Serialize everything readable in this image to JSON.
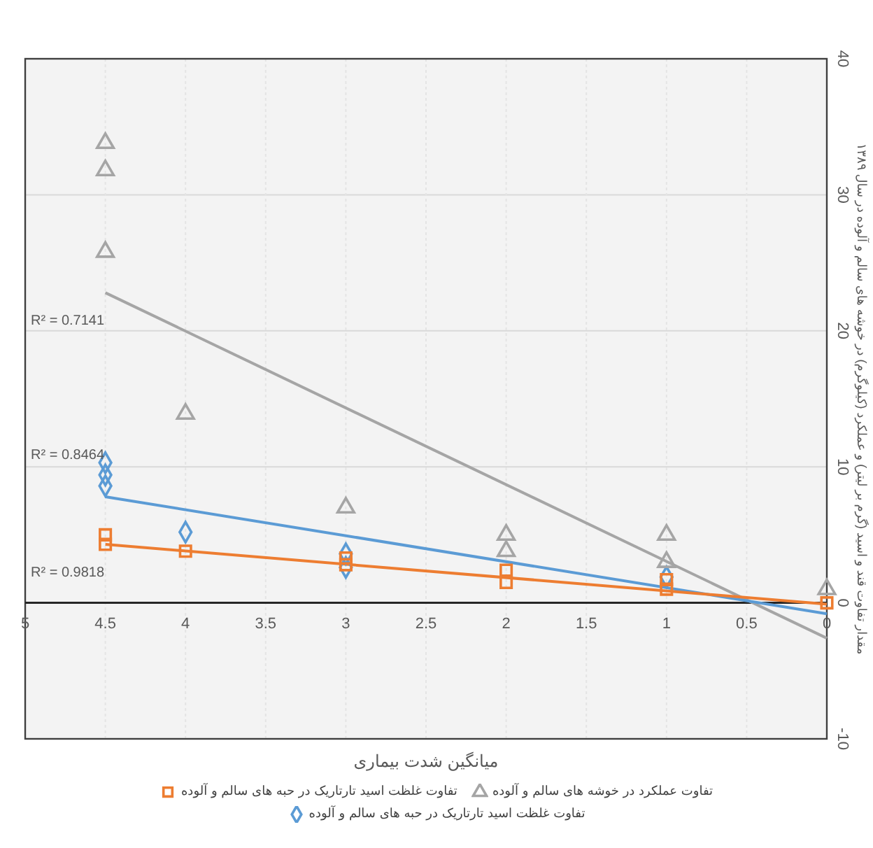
{
  "chart_data": {
    "type": "scatter",
    "xlabel": "میانگین شدت بیماری",
    "ylabel": "مقدار تفاوت قند و اسید (گرم بر لیتر) و عملکرد (کیلوگرم) در خوشه های سالم و آلوده در سال ۱۳۸۹",
    "xlim": [
      5,
      0
    ],
    "xticks": [
      5,
      4.5,
      4,
      3.5,
      3,
      2.5,
      2,
      1.5,
      1,
      0.5,
      0
    ],
    "ylim": [
      -10,
      40
    ],
    "yticks": [
      -10,
      0,
      10,
      20,
      30,
      40
    ],
    "grid": true,
    "legend": "bottom",
    "series": [
      {
        "name": "تفاوت عملکرد در خوشه های سالم و آلوده",
        "marker": "triangle",
        "color": "#a5a5a5",
        "x": [
          4.5,
          4.5,
          4.5,
          4,
          3,
          2,
          2,
          1,
          1,
          0
        ],
        "values": [
          33.8,
          31.8,
          25.8,
          13.9,
          7.0,
          5.0,
          3.8,
          5.0,
          3.0,
          1.0
        ]
      },
      {
        "name": "تفاوت غلظت اسید تارتاریک در حبه های سالم و آلوده",
        "marker": "square",
        "color": "#ed7d31",
        "x": [
          4.5,
          4.5,
          4,
          3,
          3,
          2,
          2,
          1,
          1,
          0
        ],
        "values": [
          5.0,
          4.3,
          3.8,
          3.3,
          2.8,
          2.4,
          1.5,
          1.7,
          1.0,
          0
        ]
      },
      {
        "name": "تفاوت غلظت اسید تارتاریک در حبه های سالم و آلوده",
        "marker": "diamond",
        "color": "#5b9bd5",
        "x": [
          4.5,
          4.5,
          4.5,
          4,
          3,
          3,
          1
        ],
        "values": [
          10.3,
          9.4,
          8.6,
          5.2,
          3.6,
          2.6,
          1.9
        ]
      },
      {
        "type": "line",
        "marker": "none",
        "color": "#a5a5a5",
        "x": [
          4.5,
          0
        ],
        "values": [
          22.8,
          -2.6
        ]
      },
      {
        "type": "line",
        "marker": "none",
        "color": "#5b9bd5",
        "x": [
          4.5,
          0
        ],
        "values": [
          7.8,
          -0.8
        ]
      },
      {
        "type": "line",
        "marker": "none",
        "color": "#ed7d31",
        "x": [
          4.5,
          0
        ],
        "values": [
          4.3,
          -0.1
        ]
      }
    ],
    "annotations": [
      "R² = 0.7141",
      "R² = 0.8464",
      "R² = 0.9818"
    ]
  }
}
